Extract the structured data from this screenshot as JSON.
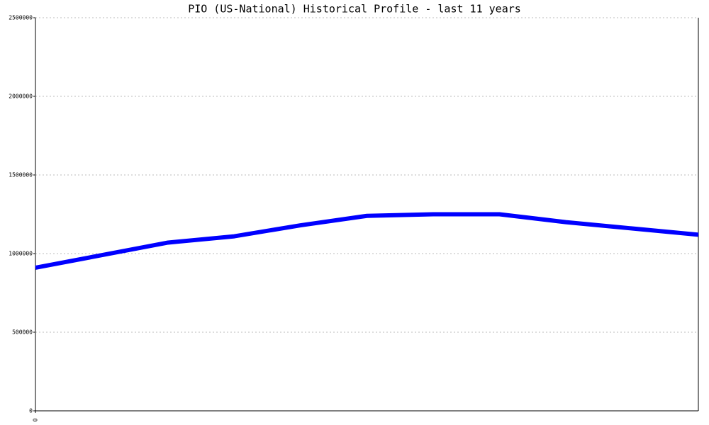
{
  "chart_data": {
    "type": "line",
    "title": "PIO (US-National) Historical Profile - last 11 years",
    "x": [
      0,
      1,
      2,
      3,
      4,
      5,
      6,
      7,
      8,
      9,
      10
    ],
    "values": [
      910000,
      990000,
      1070000,
      1110000,
      1180000,
      1240000,
      1250000,
      1250000,
      1200000,
      1160000,
      1120000
    ],
    "color": "#0000ff",
    "xlim": [
      0,
      10
    ],
    "xticks": [
      0
    ],
    "ylim": [
      0,
      2500000
    ],
    "yticks": [
      0,
      500000,
      1000000,
      1500000,
      2000000,
      2500000
    ],
    "grid": true
  }
}
